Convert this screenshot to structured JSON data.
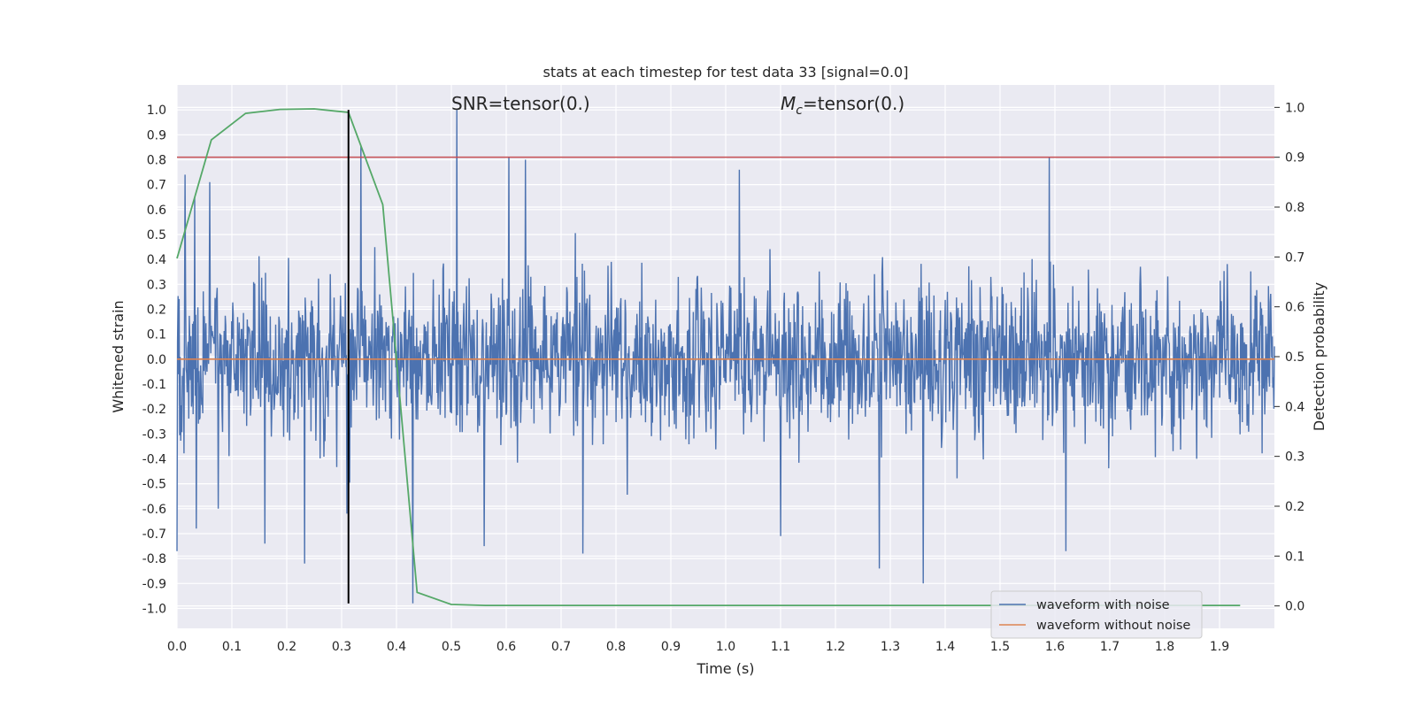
{
  "chart_data": {
    "type": "line",
    "title": "stats at each timestep for test data 33 [signal=0.0]",
    "xlabel": "Time (s)",
    "ylabel": "Whitened strain",
    "y2label": "Detection probability",
    "xlim": [
      0.0,
      2.0
    ],
    "ylim": [
      -1.08,
      1.1
    ],
    "y2lim": [
      -0.045,
      1.045
    ],
    "x_ticks": [
      "0.0",
      "0.1",
      "0.2",
      "0.3",
      "0.4",
      "0.5",
      "0.6",
      "0.7",
      "0.8",
      "0.9",
      "1.0",
      "1.1",
      "1.2",
      "1.3",
      "1.4",
      "1.5",
      "1.6",
      "1.7",
      "1.8",
      "1.9"
    ],
    "y_ticks": [
      "1.0",
      "0.9",
      "0.8",
      "0.7",
      "0.6",
      "0.5",
      "0.4",
      "0.3",
      "0.2",
      "0.1",
      "0.0",
      "-0.1",
      "-0.2",
      "-0.3",
      "-0.4",
      "-0.5",
      "-0.6",
      "-0.7",
      "-0.8",
      "-0.9",
      "-1.0"
    ],
    "y2_ticks": [
      "1.0",
      "0.9",
      "0.8",
      "0.7",
      "0.6",
      "0.5",
      "0.4",
      "0.3",
      "0.2",
      "0.1",
      "0.0"
    ],
    "grid": true,
    "legend_position": "lower-right",
    "annotations": {
      "snr_text": "SNR=tensor(0.)",
      "mc_symbol": "M",
      "mc_subscript": "c",
      "mc_value": "=tensor(0.)"
    },
    "threshold": {
      "axis": "right",
      "y": 0.9,
      "color": "#c44e52"
    },
    "marker_line": {
      "x": 0.3125,
      "y_range": [
        -0.98,
        1.0
      ],
      "color": "#000000"
    },
    "series": [
      {
        "name": "waveform with noise",
        "color": "#4c72b0",
        "axis": "left",
        "noise": {
          "start": 0.0,
          "end": 2.0,
          "samples": 2048,
          "typical_amplitude": 0.35
        },
        "spikes": [
          {
            "x": 0.0,
            "y": -0.77
          },
          {
            "x": 0.015,
            "y": 0.74
          },
          {
            "x": 0.032,
            "y": 0.65
          },
          {
            "x": 0.035,
            "y": -0.68
          },
          {
            "x": 0.06,
            "y": 0.71
          },
          {
            "x": 0.075,
            "y": -0.6
          },
          {
            "x": 0.16,
            "y": -0.74
          },
          {
            "x": 0.233,
            "y": -0.82
          },
          {
            "x": 0.31,
            "y": -0.62
          },
          {
            "x": 0.335,
            "y": 0.86
          },
          {
            "x": 0.43,
            "y": -0.98
          },
          {
            "x": 0.51,
            "y": 1.0
          },
          {
            "x": 0.56,
            "y": -0.75
          },
          {
            "x": 0.605,
            "y": 0.81
          },
          {
            "x": 0.635,
            "y": 0.8
          },
          {
            "x": 0.74,
            "y": -0.78
          },
          {
            "x": 1.025,
            "y": 0.76
          },
          {
            "x": 1.1,
            "y": -0.71
          },
          {
            "x": 1.28,
            "y": -0.84
          },
          {
            "x": 1.36,
            "y": -0.9
          },
          {
            "x": 1.59,
            "y": 0.81
          },
          {
            "x": 1.62,
            "y": -0.77
          }
        ]
      },
      {
        "name": "waveform without noise",
        "color": "#dd8452",
        "axis": "left",
        "x": [
          0.0,
          2.0
        ],
        "y": [
          0.0,
          0.0
        ]
      },
      {
        "name": "",
        "color": "#55a868",
        "axis": "right",
        "x": [
          0.0,
          0.0625,
          0.125,
          0.1875,
          0.25,
          0.3125,
          0.375,
          0.4375,
          0.5,
          0.5625,
          0.625,
          0.6875,
          0.75,
          0.8125,
          0.875,
          0.9375,
          1.0,
          1.0625,
          1.125,
          1.1875,
          1.25,
          1.3125,
          1.375,
          1.4375,
          1.5,
          1.5625,
          1.625,
          1.6875,
          1.75,
          1.8125,
          1.875,
          1.9375
        ],
        "y": [
          0.697,
          0.935,
          0.988,
          0.996,
          0.997,
          0.99,
          0.805,
          0.027,
          0.003,
          0.001,
          0.001,
          0.001,
          0.001,
          0.001,
          0.001,
          0.001,
          0.001,
          0.001,
          0.001,
          0.001,
          0.001,
          0.001,
          0.001,
          0.001,
          0.001,
          0.001,
          0.001,
          0.001,
          0.001,
          0.001,
          0.001,
          0.001
        ]
      }
    ]
  }
}
